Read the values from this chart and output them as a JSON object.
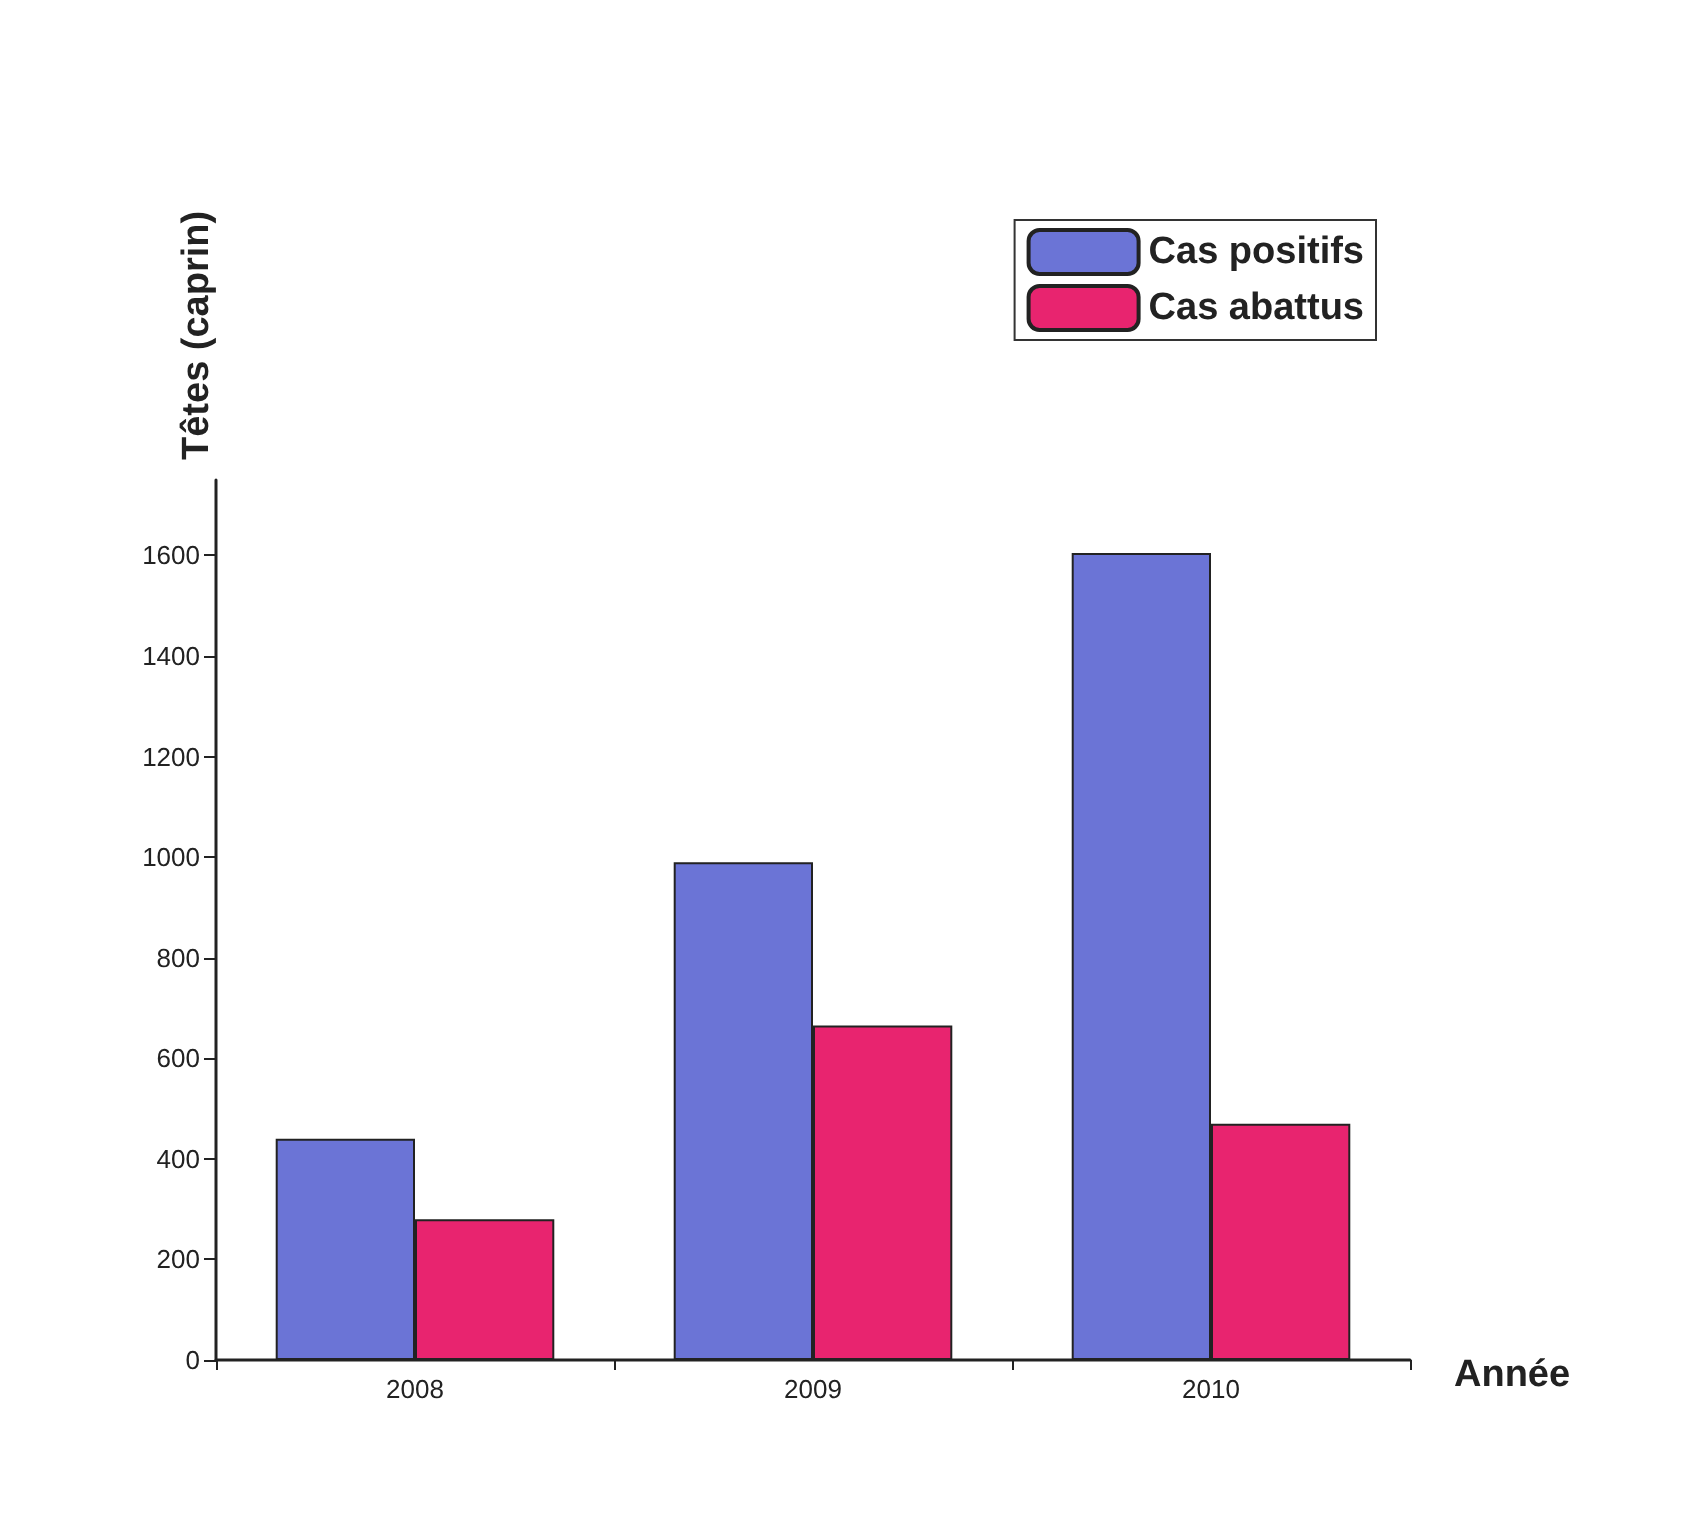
{
  "chart_data": {
    "type": "bar",
    "xlabel": "Année",
    "ylabel": "Têtes (caprin)",
    "categories": [
      "2008",
      "2009",
      "2010"
    ],
    "series": [
      {
        "name": "Cas positifs",
        "color": "#6b74d6",
        "values": [
          440,
          990,
          1605
        ]
      },
      {
        "name": "Cas abattus",
        "color": "#e8246f",
        "values": [
          280,
          665,
          470
        ]
      }
    ],
    "ylim": [
      0,
      1750
    ],
    "yticks": [
      0,
      200,
      400,
      600,
      800,
      1000,
      1200,
      1400,
      1600
    ],
    "grid": false,
    "legend": "top right"
  }
}
